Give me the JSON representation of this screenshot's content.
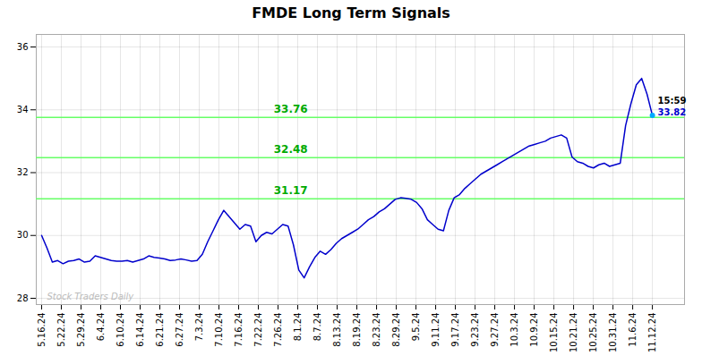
{
  "chart_data": {
    "type": "line",
    "title": "FMDE Long Term Signals",
    "color": "#0000cc",
    "grid": true,
    "x": [
      0,
      1,
      2,
      3,
      4,
      5,
      6,
      7,
      8,
      9,
      10,
      11,
      12,
      13,
      14,
      15,
      16,
      17,
      18,
      19,
      20,
      21,
      22,
      23,
      24,
      25,
      26,
      27,
      28,
      29,
      30,
      31,
      32,
      33,
      34,
      35,
      36,
      37,
      38,
      39,
      40,
      41,
      42,
      43,
      44,
      45,
      46,
      47,
      48,
      49,
      50,
      51,
      52,
      53,
      54,
      55,
      56,
      57,
      58,
      59,
      60,
      61,
      62,
      63,
      64,
      65,
      66,
      67,
      68,
      69,
      70,
      71,
      72,
      73,
      74,
      75,
      76,
      77,
      78,
      79,
      80,
      81,
      82,
      83,
      84,
      85,
      86,
      87,
      88,
      89,
      90,
      91,
      92,
      93,
      94,
      95,
      96,
      97,
      98,
      99,
      100,
      101,
      102,
      103,
      104,
      105,
      106,
      107,
      108,
      109,
      110,
      111,
      112,
      113,
      114
    ],
    "values": [
      30.0,
      29.6,
      29.15,
      29.2,
      29.1,
      29.18,
      29.2,
      29.25,
      29.15,
      29.18,
      29.35,
      29.3,
      29.25,
      29.2,
      29.18,
      29.18,
      29.2,
      29.15,
      29.2,
      29.25,
      29.35,
      29.3,
      29.28,
      29.25,
      29.2,
      29.22,
      29.25,
      29.22,
      29.18,
      29.2,
      29.4,
      29.8,
      30.15,
      30.5,
      30.8,
      30.6,
      30.4,
      30.2,
      30.35,
      30.3,
      29.8,
      30.0,
      30.1,
      30.05,
      30.2,
      30.35,
      30.3,
      29.7,
      28.9,
      28.65,
      29.0,
      29.3,
      29.5,
      29.4,
      29.55,
      29.75,
      29.9,
      30.0,
      30.1,
      30.2,
      30.35,
      30.5,
      30.6,
      30.75,
      30.85,
      31.0,
      31.15,
      31.2,
      31.18,
      31.15,
      31.05,
      30.85,
      30.5,
      30.35,
      30.2,
      30.15,
      30.8,
      31.2,
      31.3,
      31.5,
      31.65,
      31.8,
      31.95,
      32.05,
      32.15,
      32.25,
      32.35,
      32.45,
      32.55,
      32.65,
      32.75,
      32.85,
      32.9,
      32.95,
      33.0,
      33.1,
      33.15,
      33.2,
      33.1,
      32.5,
      32.35,
      32.3,
      32.2,
      32.15,
      32.25,
      32.3,
      32.2,
      32.25,
      32.3,
      33.5,
      34.2,
      34.8,
      35.0,
      34.5,
      33.82
    ],
    "xlim": [
      -1,
      120
    ],
    "xticks": [
      {
        "value": 0,
        "label": "5.16.24"
      },
      {
        "value": 3.67741935483871,
        "label": "5.22.24"
      },
      {
        "value": 7.35483870967742,
        "label": "5.29.24"
      },
      {
        "value": 11.03225806451613,
        "label": "6.4.24"
      },
      {
        "value": 14.70967741935484,
        "label": "6.10.24"
      },
      {
        "value": 18.38709677419355,
        "label": "6.14.24"
      },
      {
        "value": 22.06451612903226,
        "label": "6.21.24"
      },
      {
        "value": 25.74193548387097,
        "label": "6.27.24"
      },
      {
        "value": 29.41935483870968,
        "label": "7.3.24"
      },
      {
        "value": 33.09677419354839,
        "label": "7.10.24"
      },
      {
        "value": 36.7741935483871,
        "label": "7.16.24"
      },
      {
        "value": 40.45161290322581,
        "label": "7.22.24"
      },
      {
        "value": 44.12903225806452,
        "label": "7.26.24"
      },
      {
        "value": 47.80645161290323,
        "label": "8.1.24"
      },
      {
        "value": 51.48387096774194,
        "label": "8.7.24"
      },
      {
        "value": 55.16129032258065,
        "label": "8.13.24"
      },
      {
        "value": 58.83870967741935,
        "label": "8.19.24"
      },
      {
        "value": 62.51612903225806,
        "label": "8.23.24"
      },
      {
        "value": 66.19354838709677,
        "label": "8.29.24"
      },
      {
        "value": 69.87096774193549,
        "label": "9.5.24"
      },
      {
        "value": 73.54838709677419,
        "label": "9.11.24"
      },
      {
        "value": 77.2258064516129,
        "label": "9.17.24"
      },
      {
        "value": 80.90322580645162,
        "label": "9.23.24"
      },
      {
        "value": 84.58064516129032,
        "label": "9.27.24"
      },
      {
        "value": 88.25806451612904,
        "label": "10.3.24"
      },
      {
        "value": 91.93548387096774,
        "label": "10.9.24"
      },
      {
        "value": 95.61290322580645,
        "label": "10.15.24"
      },
      {
        "value": 99.29032258064517,
        "label": "10.21.24"
      },
      {
        "value": 102.96774193548387,
        "label": "10.25.24"
      },
      {
        "value": 106.64516129032258,
        "label": "10.31.24"
      },
      {
        "value": 110.3225806451613,
        "label": "11.6.24"
      },
      {
        "value": 114,
        "label": "11.12.24"
      }
    ],
    "ylim": [
      27.8,
      36.4
    ],
    "yticks": [
      28,
      30,
      32,
      34,
      36
    ],
    "hlines": [
      {
        "value": 33.76,
        "label": "33.76",
        "color": "#66ff66",
        "label_color": "#00aa00"
      },
      {
        "value": 32.48,
        "label": "32.48",
        "color": "#66ff66",
        "label_color": "#00aa00"
      },
      {
        "value": 31.17,
        "label": "31.17",
        "color": "#66ff66",
        "label_color": "#00aa00"
      }
    ],
    "annotations": [
      {
        "text": "15:59",
        "color": "black"
      },
      {
        "text": "33.82",
        "color": "#0000cc",
        "dot_color": "#00aaff"
      }
    ],
    "watermark": {
      "text": "Stock Traders Daily",
      "color": "#bbbbbb"
    }
  }
}
